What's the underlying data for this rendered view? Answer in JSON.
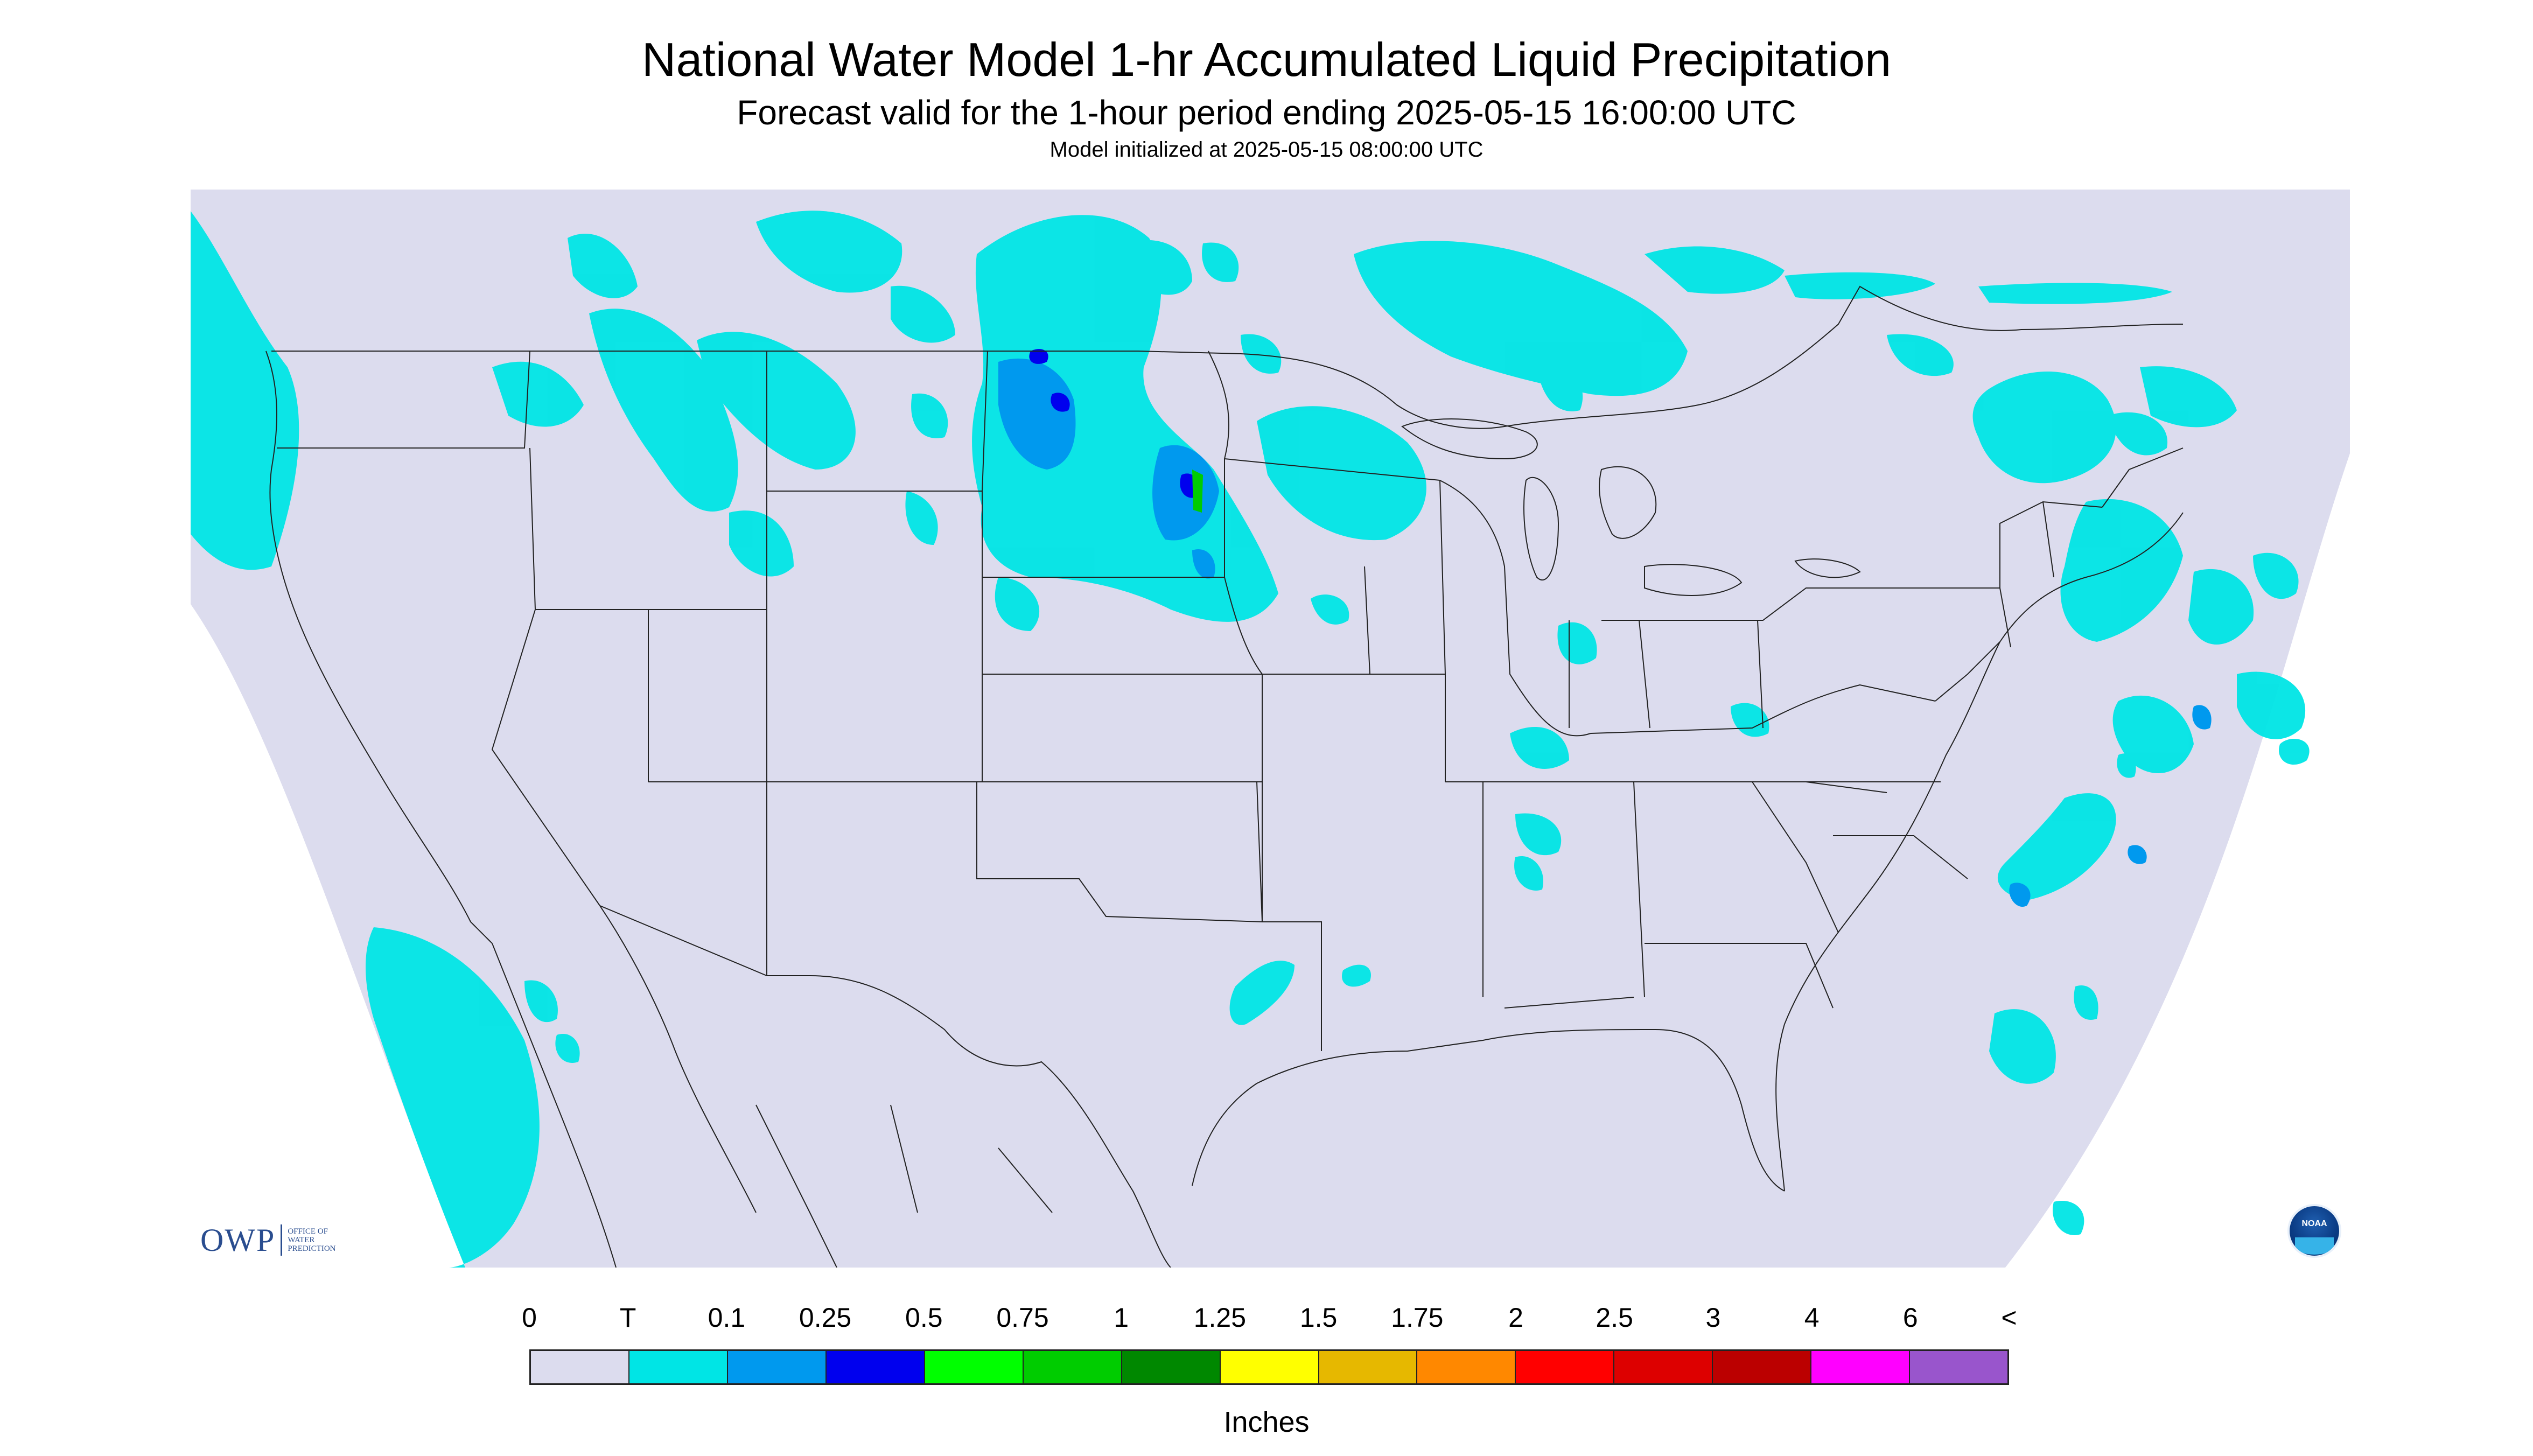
{
  "title": "National Water Model 1-hr Accumulated Liquid Precipitation",
  "subtitle": "Forecast valid for the 1-hour period ending 2025-05-15 16:00:00 UTC",
  "init_text": "Model initialized at 2025-05-15 08:00:00 UTC",
  "logo": {
    "owp_text": "OWP",
    "owp_subtitle": [
      "OFFICE OF",
      "WATER",
      "PREDICTION"
    ],
    "noaa_text": "NOAA",
    "noaa_icon": "noaa-logo-icon"
  },
  "map": {
    "background_color": "#ffffff",
    "domain_color": "#dcdcee",
    "boundary_color": "#222222"
  },
  "legend": {
    "units": "Inches",
    "tick_labels": [
      "0",
      "T",
      "0.1",
      "0.25",
      "0.5",
      "0.75",
      "1",
      "1.25",
      "1.5",
      "1.75",
      "2",
      "2.5",
      "3",
      "4",
      "6",
      "<"
    ],
    "colors": [
      "#dcdcee",
      "#00e5e5",
      "#0099ee",
      "#0000ee",
      "#00ff00",
      "#00cc00",
      "#008800",
      "#ffff00",
      "#e6b800",
      "#ff8800",
      "#ff0000",
      "#dd0000",
      "#bb0000",
      "#ff00ff",
      "#9955cc"
    ]
  }
}
